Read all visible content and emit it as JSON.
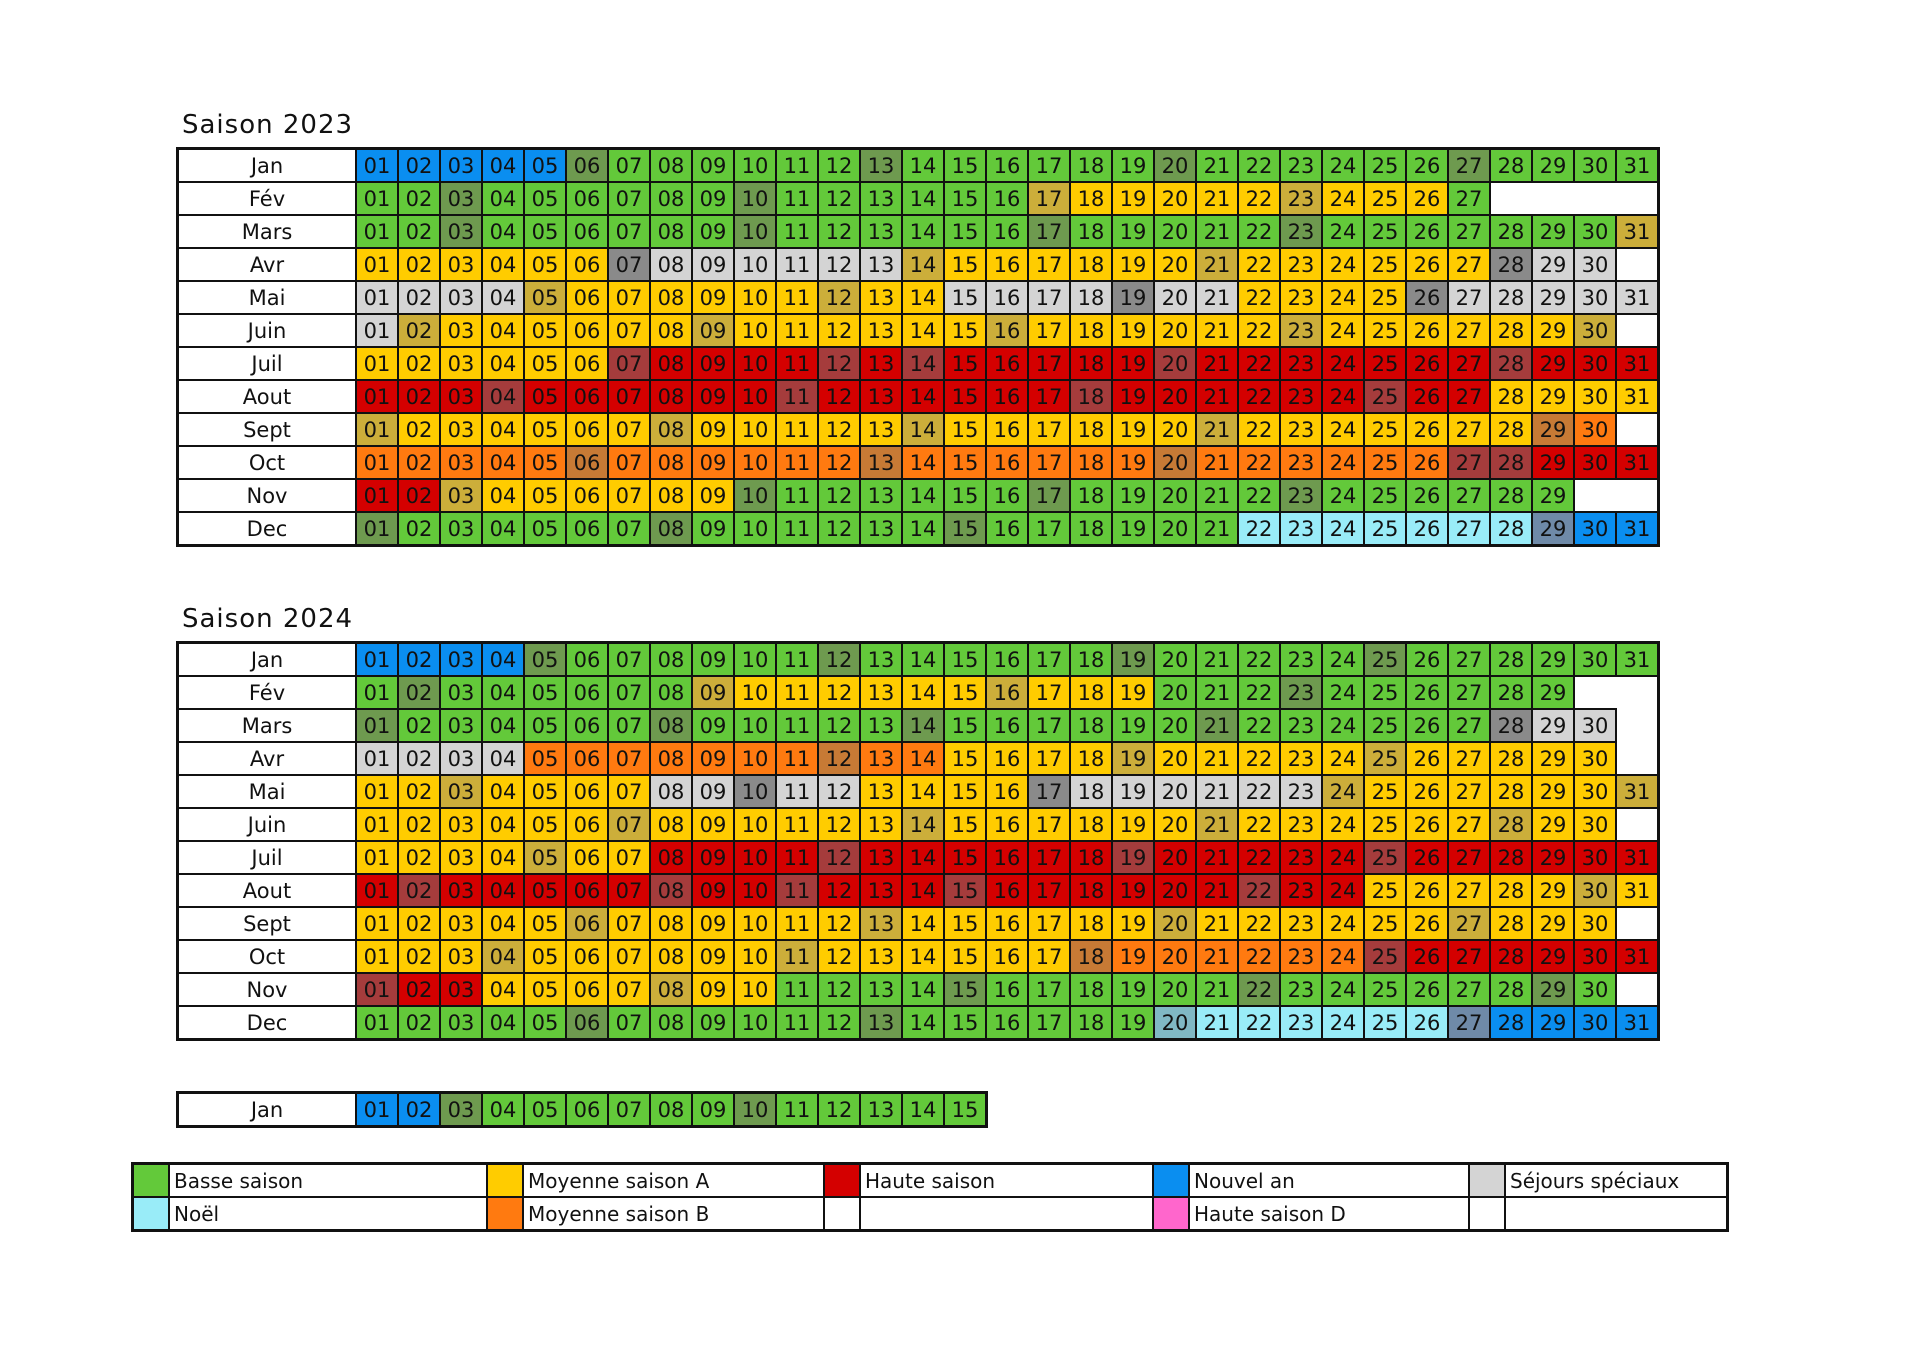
{
  "colors": {
    "B": "#63c93a",
    "b": "#6e9a4f",
    "A": "#ffcc00",
    "a": "#ccae3a",
    "O": "#ff7a10",
    "o": "#c77a35",
    "H": "#d40000",
    "h": "#a53c3c",
    "N": "#0a8ef0",
    "n": "#6f8aa8",
    "C": "#99ecf8",
    "c": "#80b8c4",
    "S": "#d4d4d4",
    "s": "#8a8a8a",
    "D": "#ff66cc"
  },
  "seasons": [
    {
      "title": "Saison 2023",
      "months": [
        {
          "name": "Jan",
          "cells": "NNNNNbBBBBBBbBBBBBBbBBBBBBbBBBB"
        },
        {
          "name": "Fév",
          "cells": "BBbBBBBBBbBBBBBBaAAAAAaAAAB"
        },
        {
          "name": "Mars",
          "cells": "BBbBBBBBBbBBBBBBbBBBBBbBBBBBBBa"
        },
        {
          "name": "Avr",
          "cells": "AAAAAAsSSSSSSaAAAAAAaAAAAAAsSS"
        },
        {
          "name": "Mai",
          "cells": "SSSSaAAAAAAaAASSSSsSSAAAAsSSSSS"
        },
        {
          "name": "Juin",
          "cells": "SaAAAAAAaAAAAAAaAAAAAAaAAAAAAa"
        },
        {
          "name": "Juil",
          "cells": "AAAAAAhHHHHhHhHHHHHhHHHHHHHhHHH"
        },
        {
          "name": "Aout",
          "cells": "HHHhHHHHHHhHHHHHHhHHHHHHhHHAAAA"
        },
        {
          "name": "Sept",
          "cells": "aAAAAAAaAAAAAaAAAAAAaAAAAAAAoO"
        },
        {
          "name": "Oct",
          "cells": "OOOOOoOOOOOOoOOOOOOoOOOOOOhhHHH"
        },
        {
          "name": "Nov",
          "cells": "HHaAAAAAAbBBBBBBbBBBBBbBBBBBB"
        },
        {
          "name": "Dec",
          "cells": "bBBBBBBbBBBBBBbBBBBBBCCCCCCCnNN"
        }
      ]
    },
    {
      "title": "Saison 2024",
      "months": [
        {
          "name": "Jan",
          "cells": "NNNNbBBBBBBbBBBBBBbBBBBBbBBBBBB"
        },
        {
          "name": "Fév",
          "cells": "BbBBBBBBaAAAAAAaAAABBBbBBBBBB"
        },
        {
          "name": "Mars",
          "cells": "bBBBBBBbBBBBBbBBBBBBbBBBBBBsSS"
        },
        {
          "name": "Avr",
          "cells": "SSSSOOOOOOOoOOAAAAaAAAAAaAAAAA"
        },
        {
          "name": "Mai",
          "cells": "AAaAAAASSsSSAAAAsSSSSSSaAAAAAAa"
        },
        {
          "name": "Juin",
          "cells": "AAAAAAaAAAAAAaAAAAAAaAAAAAAaAA"
        },
        {
          "name": "Juil",
          "cells": "AAAAaAAHHHHhHHHHHHhHHHHHhHHHHHH"
        },
        {
          "name": "Aout",
          "cells": "HhHHHHHhHHhHHHhHHHHHHhHHAAAAAaA"
        },
        {
          "name": "Sept",
          "cells": "AAAAAaAAAAAAaAAAAAAaAAAAAAaAAA"
        },
        {
          "name": "Oct",
          "cells": "AAAaAAAAAAaAAAAAAoOOOOOOhHHHHHH"
        },
        {
          "name": "Nov",
          "cells": "hHHAAAAaAABBBBbBBBBBBbBBBBBBbB"
        },
        {
          "name": "Dec",
          "cells": "BBBBBbBBBBBBbBBBBBBcCCCCCCnNNNN"
        }
      ]
    }
  ],
  "extra_month": {
    "name": "Jan",
    "cells": "NNbBBBBBBbBBBBB"
  },
  "legend": [
    [
      {
        "color": "B",
        "label": "Basse saison"
      },
      {
        "color": "A",
        "label": "Moyenne saison A"
      },
      {
        "color": "H",
        "label": "Haute saison"
      },
      {
        "color": "N",
        "label": "Nouvel an"
      },
      {
        "color": "S",
        "label": "Séjours spéciaux"
      }
    ],
    [
      {
        "color": "C",
        "label": "Noël"
      },
      {
        "color": "O",
        "label": "Moyenne saison B"
      },
      {
        "color": "",
        "label": ""
      },
      {
        "color": "D",
        "label": "Haute saison D"
      },
      {
        "color": "",
        "label": ""
      }
    ]
  ]
}
